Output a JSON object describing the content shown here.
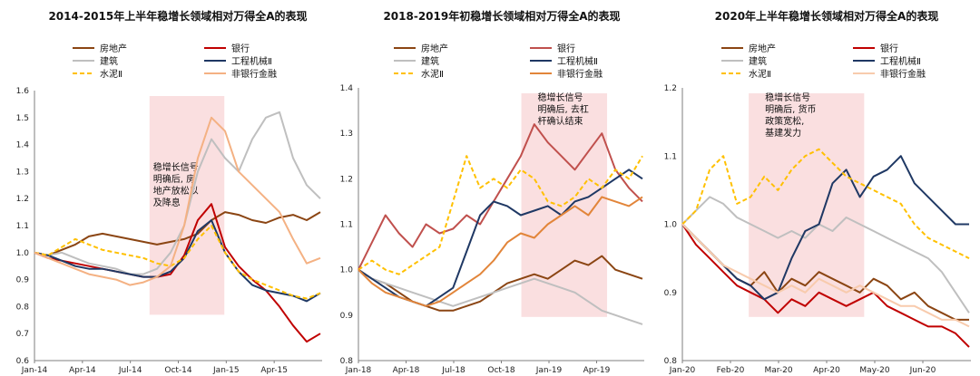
{
  "chart_data": [
    {
      "type": "line",
      "title": "2014-2015年上半年稳增长领域相对万得全A的表现",
      "xlabel": "",
      "ylabel": "",
      "ylim": [
        0.6,
        1.6
      ],
      "yticks": [
        "1.6",
        "1.5",
        "1.4",
        "1.3",
        "1.2",
        "1.1",
        "1.0",
        "0.9",
        "0.8",
        "0.7",
        "0.6"
      ],
      "xticks": [
        "Jan-14",
        "Apr-14",
        "Jul-14",
        "Oct-14",
        "Jan-15",
        "Apr-15"
      ],
      "shade": [
        0.4,
        0.66
      ],
      "annotation": [
        "稳增长信号",
        "明确后, 房",
        "地产放松以",
        "及降息"
      ],
      "series": [
        {
          "name": "房地产",
          "color": "#8B4513",
          "dash": false,
          "values": [
            1.0,
            0.99,
            1.01,
            1.03,
            1.06,
            1.07,
            1.06,
            1.05,
            1.04,
            1.03,
            1.04,
            1.05,
            1.07,
            1.12,
            1.15,
            1.14,
            1.12,
            1.11,
            1.13,
            1.14,
            1.12,
            1.15
          ]
        },
        {
          "name": "银行",
          "color": "#C00000",
          "dash": false,
          "values": [
            1.0,
            0.98,
            0.97,
            0.96,
            0.95,
            0.94,
            0.93,
            0.92,
            0.91,
            0.91,
            0.92,
            0.99,
            1.12,
            1.18,
            1.02,
            0.95,
            0.9,
            0.86,
            0.8,
            0.73,
            0.67,
            0.7
          ]
        },
        {
          "name": "建筑",
          "color": "#BFBFBF",
          "dash": false,
          "values": [
            1.0,
            0.99,
            1.0,
            0.98,
            0.96,
            0.95,
            0.94,
            0.92,
            0.92,
            0.94,
            1.0,
            1.1,
            1.3,
            1.42,
            1.35,
            1.3,
            1.42,
            1.5,
            1.52,
            1.35,
            1.25,
            1.2
          ]
        },
        {
          "name": "工程机械Ⅱ",
          "color": "#1F3864",
          "dash": false,
          "values": [
            1.0,
            0.99,
            0.97,
            0.95,
            0.94,
            0.94,
            0.93,
            0.92,
            0.91,
            0.91,
            0.93,
            0.98,
            1.08,
            1.12,
            1.0,
            0.93,
            0.88,
            0.86,
            0.85,
            0.84,
            0.82,
            0.85
          ]
        },
        {
          "name": "水泥Ⅱ",
          "color": "#FFC000",
          "dash": true,
          "values": [
            1.0,
            0.99,
            1.02,
            1.05,
            1.03,
            1.01,
            1.0,
            0.99,
            0.98,
            0.96,
            0.95,
            0.98,
            1.05,
            1.1,
            1.0,
            0.93,
            0.9,
            0.88,
            0.86,
            0.84,
            0.83,
            0.85
          ]
        },
        {
          "name": "非银行金融",
          "color": "#F4B183",
          "dash": false,
          "values": [
            1.0,
            0.98,
            0.96,
            0.94,
            0.92,
            0.91,
            0.9,
            0.88,
            0.89,
            0.91,
            0.95,
            1.1,
            1.35,
            1.5,
            1.45,
            1.3,
            1.25,
            1.2,
            1.15,
            1.05,
            0.96,
            0.98
          ]
        }
      ]
    },
    {
      "type": "line",
      "title": "2018-2019年初稳增长领域相对万得全A的表现",
      "xlabel": "",
      "ylabel": "",
      "ylim": [
        0.8,
        1.4
      ],
      "yticks": [
        "1.4",
        "1.3",
        "1.2",
        "1.1",
        "1.0",
        "0.9",
        "0.8"
      ],
      "xticks": [
        "Jan-18",
        "Apr-18",
        "Jul-18",
        "Oct-18",
        "Jan-19",
        "Apr-19"
      ],
      "shade": [
        0.57,
        0.87
      ],
      "annotation": [
        "稳增长信号",
        "明确后, 去杠",
        "杆确认结束"
      ],
      "series": [
        {
          "name": "房地产",
          "color": "#8B4513",
          "dash": false,
          "values": [
            1.0,
            0.98,
            0.97,
            0.95,
            0.93,
            0.92,
            0.91,
            0.91,
            0.92,
            0.93,
            0.95,
            0.97,
            0.98,
            0.99,
            0.98,
            1.0,
            1.02,
            1.01,
            1.03,
            1.0,
            0.99,
            0.98
          ]
        },
        {
          "name": "银行",
          "color": "#C0504D",
          "dash": false,
          "values": [
            1.0,
            1.06,
            1.12,
            1.08,
            1.05,
            1.1,
            1.08,
            1.09,
            1.12,
            1.1,
            1.15,
            1.2,
            1.25,
            1.32,
            1.28,
            1.25,
            1.22,
            1.26,
            1.3,
            1.22,
            1.18,
            1.15
          ]
        },
        {
          "name": "建筑",
          "color": "#BFBFBF",
          "dash": false,
          "values": [
            1.0,
            0.98,
            0.97,
            0.96,
            0.95,
            0.94,
            0.93,
            0.92,
            0.93,
            0.94,
            0.95,
            0.96,
            0.97,
            0.98,
            0.97,
            0.96,
            0.95,
            0.93,
            0.91,
            0.9,
            0.89,
            0.88
          ]
        },
        {
          "name": "工程机械Ⅱ",
          "color": "#1F3864",
          "dash": false,
          "values": [
            1.0,
            0.98,
            0.96,
            0.94,
            0.93,
            0.92,
            0.94,
            0.96,
            1.04,
            1.12,
            1.15,
            1.14,
            1.12,
            1.13,
            1.14,
            1.12,
            1.15,
            1.16,
            1.18,
            1.2,
            1.22,
            1.2
          ]
        },
        {
          "name": "水泥Ⅱ",
          "color": "#FFC000",
          "dash": true,
          "values": [
            1.0,
            1.02,
            1.0,
            0.99,
            1.01,
            1.03,
            1.05,
            1.15,
            1.25,
            1.18,
            1.2,
            1.18,
            1.22,
            1.2,
            1.15,
            1.14,
            1.16,
            1.2,
            1.18,
            1.22,
            1.2,
            1.25
          ]
        },
        {
          "name": "非银行金融",
          "color": "#E2853A",
          "dash": false,
          "values": [
            1.0,
            0.97,
            0.95,
            0.94,
            0.93,
            0.92,
            0.93,
            0.95,
            0.97,
            0.99,
            1.02,
            1.06,
            1.08,
            1.07,
            1.1,
            1.12,
            1.14,
            1.12,
            1.16,
            1.15,
            1.14,
            1.16
          ]
        }
      ]
    },
    {
      "type": "line",
      "title": "2020年上半年稳增长领域相对万得全A的表现",
      "xlabel": "",
      "ylabel": "",
      "ylim": [
        0.8,
        1.2
      ],
      "yticks": [
        "1.2",
        "1.1",
        "1.0",
        "0.9",
        "0.8"
      ],
      "xticks": [
        "Jan-20",
        "Feb-20",
        "Mar-20",
        "Apr-20",
        "May-20",
        "Jun-20"
      ],
      "shade": [
        0.23,
        0.63
      ],
      "annotation": [
        "稳增长信号",
        "明确后, 货币",
        "政策宽松,",
        "基建发力"
      ],
      "series": [
        {
          "name": "房地产",
          "color": "#8B4513",
          "dash": false,
          "values": [
            1.0,
            0.98,
            0.96,
            0.94,
            0.92,
            0.91,
            0.93,
            0.9,
            0.92,
            0.91,
            0.93,
            0.92,
            0.91,
            0.9,
            0.92,
            0.91,
            0.89,
            0.9,
            0.88,
            0.87,
            0.86,
            0.86
          ]
        },
        {
          "name": "银行",
          "color": "#C00000",
          "dash": false,
          "values": [
            1.0,
            0.97,
            0.95,
            0.93,
            0.91,
            0.9,
            0.89,
            0.87,
            0.89,
            0.88,
            0.9,
            0.89,
            0.88,
            0.89,
            0.9,
            0.88,
            0.87,
            0.86,
            0.85,
            0.85,
            0.84,
            0.82
          ]
        },
        {
          "name": "建筑",
          "color": "#BFBFBF",
          "dash": false,
          "values": [
            1.0,
            1.02,
            1.04,
            1.03,
            1.01,
            1.0,
            0.99,
            0.98,
            0.99,
            0.98,
            1.0,
            0.99,
            1.01,
            1.0,
            0.99,
            0.98,
            0.97,
            0.96,
            0.95,
            0.93,
            0.9,
            0.87
          ]
        },
        {
          "name": "工程机械Ⅱ",
          "color": "#1F3864",
          "dash": false,
          "values": [
            1.0,
            0.98,
            0.96,
            0.94,
            0.92,
            0.91,
            0.89,
            0.9,
            0.95,
            0.99,
            1.0,
            1.06,
            1.08,
            1.04,
            1.07,
            1.08,
            1.1,
            1.06,
            1.04,
            1.02,
            1.0,
            1.0
          ]
        },
        {
          "name": "水泥Ⅱ",
          "color": "#FFC000",
          "dash": true,
          "values": [
            1.0,
            1.02,
            1.08,
            1.1,
            1.03,
            1.04,
            1.07,
            1.05,
            1.08,
            1.1,
            1.11,
            1.09,
            1.07,
            1.06,
            1.05,
            1.04,
            1.03,
            1.0,
            0.98,
            0.97,
            0.96,
            0.95
          ]
        },
        {
          "name": "非银行金融",
          "color": "#F8CBAD",
          "dash": false,
          "values": [
            1.0,
            0.98,
            0.96,
            0.94,
            0.93,
            0.92,
            0.91,
            0.9,
            0.91,
            0.9,
            0.92,
            0.91,
            0.9,
            0.91,
            0.9,
            0.89,
            0.88,
            0.88,
            0.87,
            0.86,
            0.86,
            0.85
          ]
        }
      ]
    }
  ]
}
